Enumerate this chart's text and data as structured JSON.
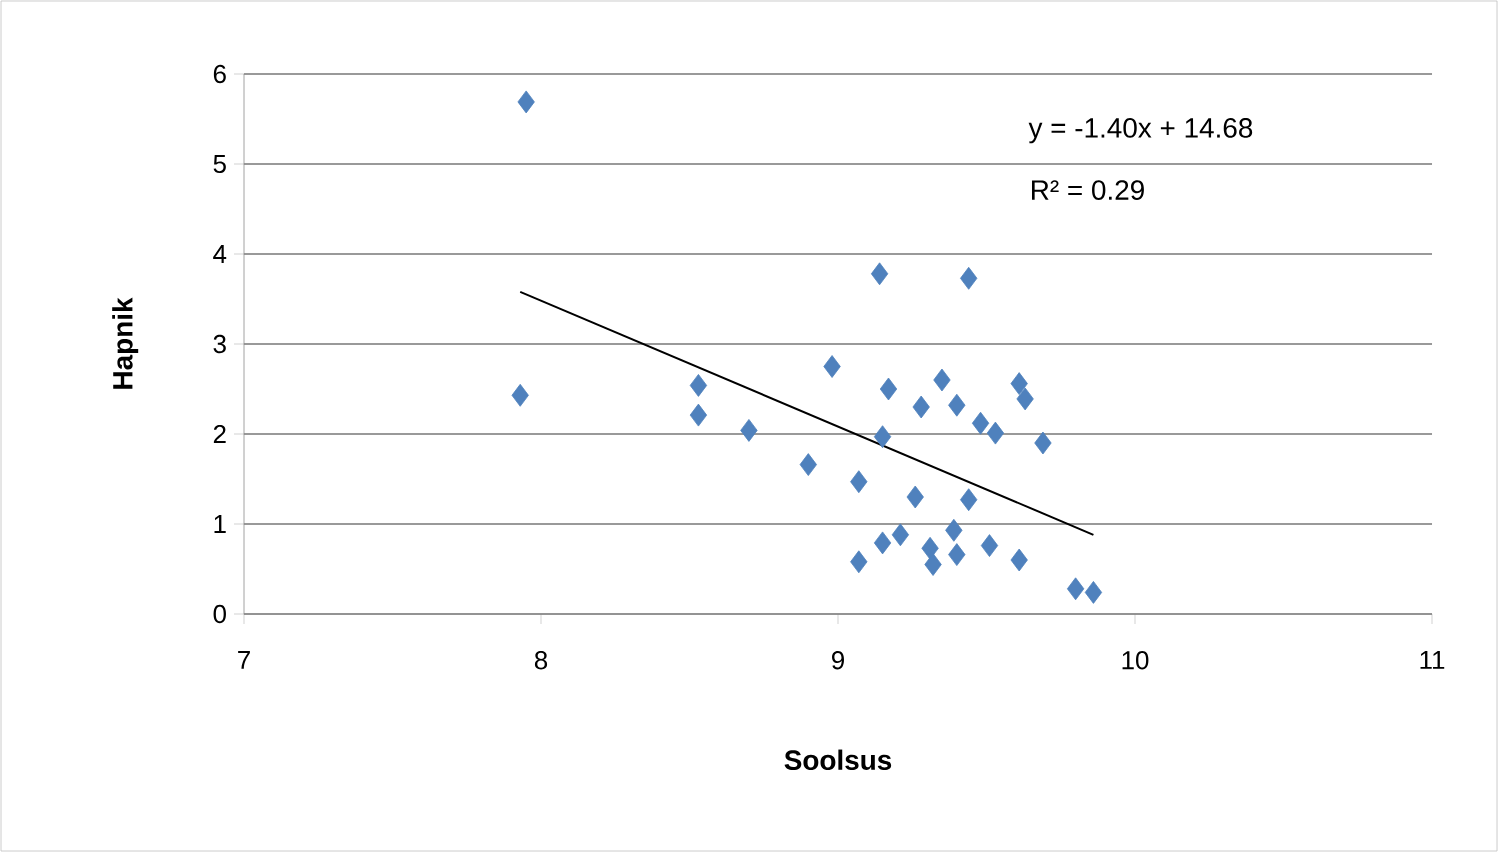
{
  "chart_data": {
    "type": "scatter",
    "xlabel": "Soolsus",
    "ylabel": "Hapnik",
    "xlim": [
      7,
      11
    ],
    "ylim": [
      0,
      6
    ],
    "xticks": [
      7,
      8,
      9,
      10,
      11
    ],
    "yticks": [
      0,
      1,
      2,
      3,
      4,
      5,
      6
    ],
    "grid": "y",
    "marker": "diamond",
    "annotations": [
      "y = -1.40x + 14.68",
      "R² = 0.29"
    ],
    "series": [
      {
        "color": "#4f81bd",
        "x": [
          7.95,
          7.93,
          8.53,
          8.53,
          8.7,
          8.9,
          8.98,
          9.07,
          9.07,
          9.17,
          9.15,
          9.28,
          9.35,
          9.4,
          9.26,
          9.44,
          9.15,
          9.21,
          9.31,
          9.32,
          9.39,
          9.4,
          9.51,
          9.61,
          9.48,
          9.53,
          9.61,
          9.63,
          9.69,
          9.8,
          9.86,
          9.14,
          9.44
        ],
        "values": [
          5.69,
          2.43,
          2.54,
          2.21,
          2.04,
          1.66,
          2.75,
          1.47,
          0.58,
          2.5,
          1.97,
          2.3,
          2.6,
          2.32,
          1.3,
          1.27,
          0.79,
          0.88,
          0.73,
          0.55,
          0.93,
          0.66,
          0.76,
          0.6,
          2.12,
          2.01,
          2.56,
          2.39,
          1.9,
          0.28,
          0.24,
          3.78,
          3.73
        ]
      },
      {
        "type": "line",
        "color": "#000000",
        "marker": "none",
        "x": [
          7.93,
          9.86
        ],
        "values": [
          3.58,
          0.88
        ]
      }
    ]
  }
}
